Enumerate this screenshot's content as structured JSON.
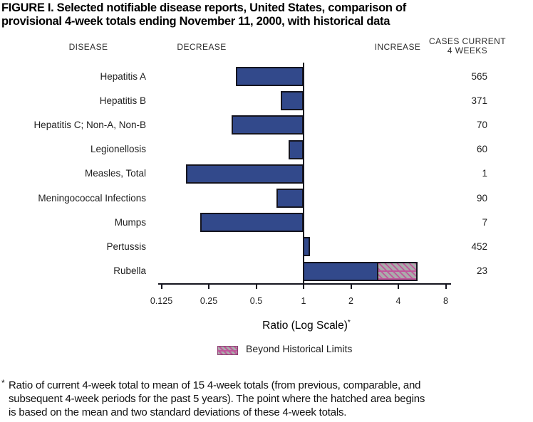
{
  "title": {
    "line1": "FIGURE I. Selected notifiable disease reports, United States, comparison of",
    "line2": "provisional 4-week totals ending November 11, 2000, with historical data"
  },
  "headers": {
    "disease": "DISEASE",
    "decrease": "DECREASE",
    "increase": "INCREASE",
    "cases_line1": "CASES CURRENT",
    "cases_line2": "4 WEEKS"
  },
  "chart_data": {
    "type": "bar",
    "orientation": "horizontal",
    "scale": "log2",
    "title": "Selected notifiable disease reports, United States, comparison of provisional 4-week totals ending November 11, 2000, with historical data",
    "xlabel": "Ratio (Log Scale)",
    "xlabel_superscript": "*",
    "axis_ticks": [
      0.125,
      0.25,
      0.5,
      1,
      2,
      4,
      8
    ],
    "axis_range": [
      0.125,
      8
    ],
    "baseline": 1,
    "grid": false,
    "rows": [
      {
        "disease": "Hepatitis A",
        "ratio": 0.37,
        "cases": 565
      },
      {
        "disease": "Hepatitis B",
        "ratio": 0.72,
        "cases": 371
      },
      {
        "disease": "Hepatitis C; Non-A, Non-B",
        "ratio": 0.35,
        "cases": 70
      },
      {
        "disease": "Legionellosis",
        "ratio": 0.8,
        "cases": 60
      },
      {
        "disease": "Measles, Total",
        "ratio": 0.18,
        "cases": 1
      },
      {
        "disease": "Meningococcal Infections",
        "ratio": 0.67,
        "cases": 90
      },
      {
        "disease": "Mumps",
        "ratio": 0.22,
        "cases": 7
      },
      {
        "disease": "Pertussis",
        "ratio": 1.1,
        "cases": 452
      },
      {
        "disease": "Rubella",
        "ratio": 3.0,
        "ratio_beyond": 5.3,
        "cases": 23
      }
    ],
    "legend": {
      "label": "Beyond Historical Limits",
      "position": "bottom"
    }
  },
  "footnote": {
    "marker": "*",
    "line1": "Ratio of current 4-week total to mean of 15 4-week totals (from previous, comparable, and",
    "line2": "subsequent 4-week periods for the past 5 years). The point where the hatched area begins",
    "line3": "is based on the mean and two standard deviations of these 4-week totals."
  },
  "colors": {
    "bar_blue": "#32498B",
    "bar_border": "#15151F",
    "hatch_gray": "#ABABAB",
    "hatch_pink": "#C0569B",
    "text": "#1F1F1F"
  }
}
